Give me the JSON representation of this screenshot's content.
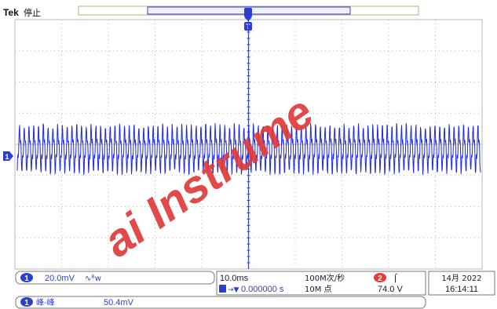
{
  "header": {
    "brand": "Tek",
    "status": "停止"
  },
  "trigger_marker": "T",
  "channel_marker": "1",
  "channel": {
    "number": "1",
    "scale": "20.0mV",
    "coupling_symbol": "∿ᴮw"
  },
  "timebase": {
    "scale": "10.0ms",
    "position": "0.000000 s",
    "sample_rate": "100M次/秒",
    "record_length": "10M 点"
  },
  "trigger": {
    "source": "2",
    "slope": "⌠",
    "level": "74.0 V"
  },
  "datetime": {
    "date": "14月 2022",
    "time": "16:14:11"
  },
  "measurement": {
    "channel": "1",
    "name": "峰-峰",
    "value": "50.4mV"
  },
  "watermark": "ai Instrume",
  "colors": {
    "trace": "#1f2be0",
    "grid": "#b8b8b8",
    "accent": "#2a3fd1",
    "trigger_source": "#e83a3a",
    "watermark": "#e03a3a"
  },
  "waveform": {
    "cycles": 97,
    "peak_to_peak_divisions": 2.52
  }
}
